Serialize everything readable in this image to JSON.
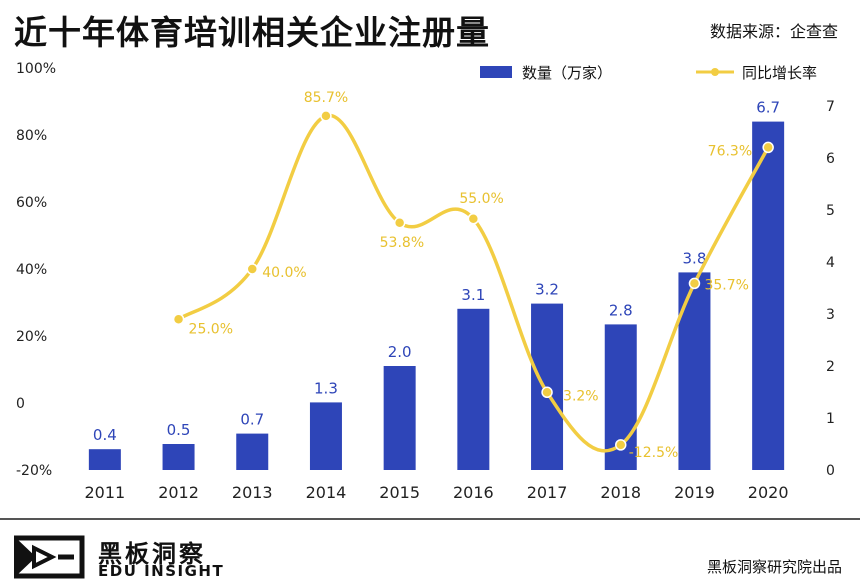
{
  "header": {
    "title": "近十年体育培训相关企业注册量",
    "source": "数据来源：企查查"
  },
  "footer": {
    "brand_cn": "黑板洞察",
    "brand_en": "EDU INSIGHT",
    "credit": "黑板洞察研究院出品"
  },
  "colors": {
    "bar": "#2e45b8",
    "bar_label": "#2e45b8",
    "line": "#f2cd43",
    "line_label": "#e8c12f"
  },
  "chart_data": {
    "type": "bar",
    "categories": [
      "2011",
      "2012",
      "2013",
      "2014",
      "2015",
      "2016",
      "2017",
      "2018",
      "2019",
      "2020"
    ],
    "series": [
      {
        "name": "数量（万家）",
        "type": "bar",
        "axis": "right",
        "values": [
          0.4,
          0.5,
          0.7,
          1.3,
          2.0,
          3.1,
          3.2,
          2.8,
          3.8,
          6.7
        ],
        "labels": [
          "0.4",
          "0.5",
          "0.7",
          "1.3",
          "2.0",
          "3.1",
          "3.2",
          "2.8",
          "3.8",
          "6.7"
        ]
      },
      {
        "name": "同比增长率",
        "type": "line",
        "axis": "left",
        "values": [
          null,
          25.0,
          40.0,
          85.7,
          53.8,
          55.0,
          3.2,
          -12.5,
          35.7,
          76.3
        ],
        "labels": [
          null,
          "25.0%",
          "40.0%",
          "85.7%",
          "53.8%",
          "55.0%",
          "3.2%",
          "-12.5%",
          "35.7%",
          "76.3%"
        ]
      }
    ],
    "y_left": {
      "ticks": [
        "100%",
        "80%",
        "60%",
        "40%",
        "20%",
        "0",
        "-20%"
      ],
      "range": [
        -20,
        100
      ]
    },
    "y_right": {
      "ticks": [
        "7",
        "6",
        "5",
        "4",
        "3",
        "2",
        "1",
        "0"
      ],
      "range": [
        -0.1,
        7.5
      ]
    },
    "legend_position": "top-right"
  }
}
